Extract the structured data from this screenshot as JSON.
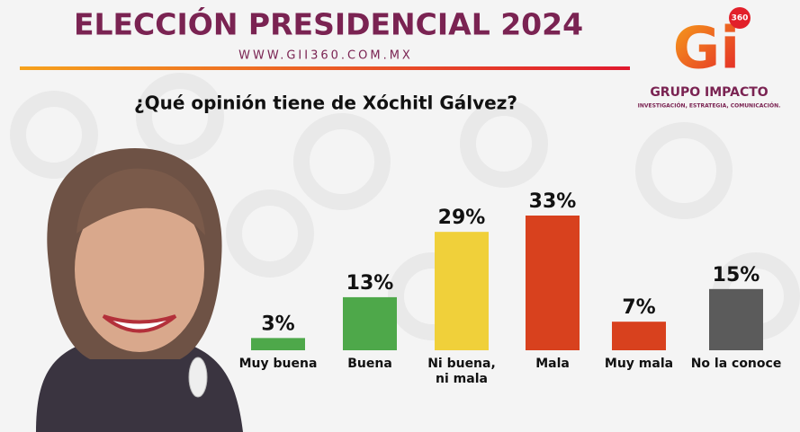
{
  "header": {
    "title": "ELECCIÓN PRESIDENCIAL 2024",
    "website": "WWW.GII360.COM.MX"
  },
  "logo": {
    "mark": "Gi",
    "badge": "360",
    "name": "GRUPO IMPACTO",
    "tagline": "INVESTIGACIÓN, ESTRATEGIA, COMUNICACIÓN."
  },
  "chart_data": {
    "type": "bar",
    "title": "¿Qué opinión tiene de Xóchitl Gálvez?",
    "categories": [
      "Muy buena",
      "Buena",
      "Ni buena, ni mala",
      "Mala",
      "Muy mala",
      "No la conoce"
    ],
    "values": [
      3,
      13,
      29,
      33,
      7,
      15
    ],
    "value_labels": [
      "3%",
      "13%",
      "29%",
      "33%",
      "7%",
      "15%"
    ],
    "colors": [
      "#4ea84a",
      "#4ea84a",
      "#f0d03a",
      "#d8411e",
      "#d8411e",
      "#5b5b5b"
    ]
  }
}
